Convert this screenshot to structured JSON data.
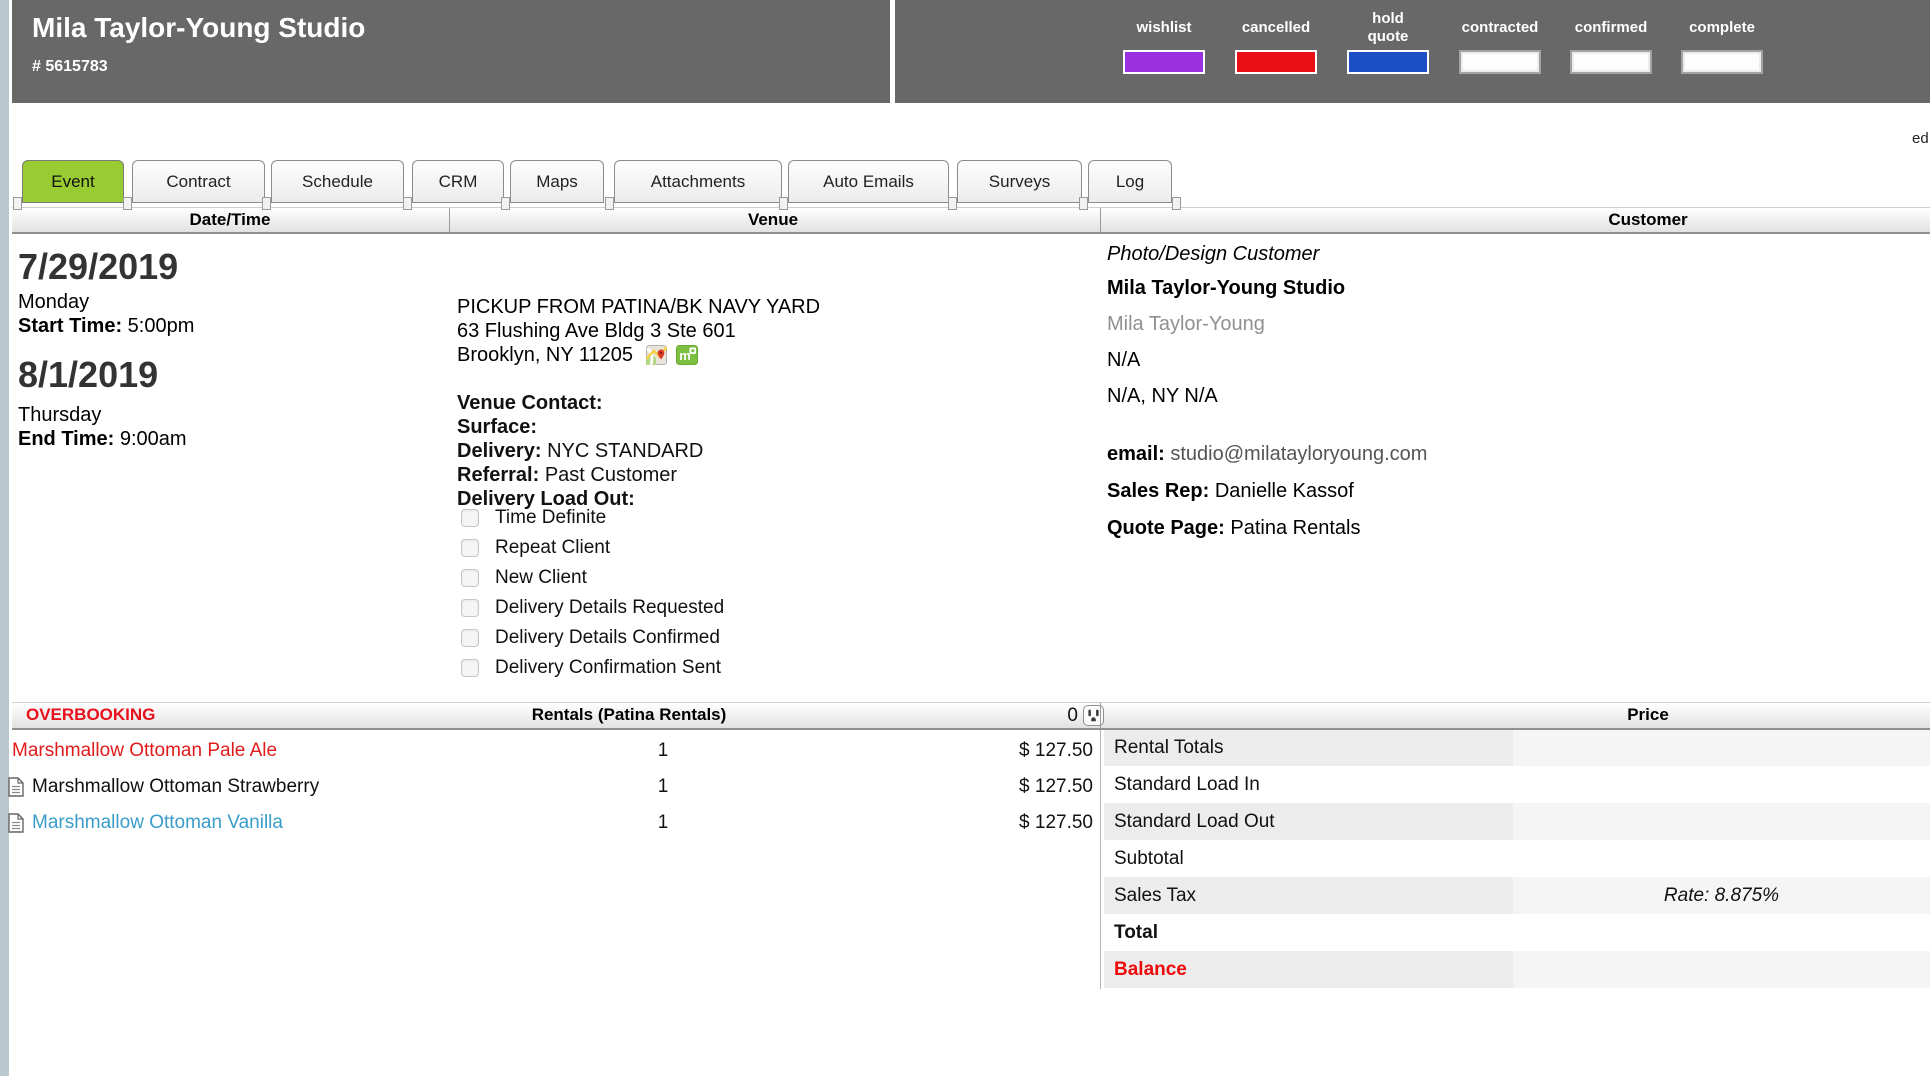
{
  "header": {
    "title": "Mila Taylor-Young Studio",
    "order_number": "# 5615783",
    "edit_label": "ed",
    "legend": [
      {
        "label": "wishlist",
        "color": "#9a30df",
        "filled": true
      },
      {
        "label": "cancelled",
        "color": "#ea0e17",
        "filled": true
      },
      {
        "label": "hold\nquote",
        "color": "#1c4fc5",
        "filled": true
      },
      {
        "label": "contracted",
        "color": "#ffffff",
        "filled": false
      },
      {
        "label": "confirmed",
        "color": "#ffffff",
        "filled": false
      },
      {
        "label": "complete",
        "color": "#ffffff",
        "filled": false
      }
    ]
  },
  "tabs": [
    {
      "label": "Event",
      "active": true
    },
    {
      "label": "Contract",
      "active": false
    },
    {
      "label": "Schedule",
      "active": false
    },
    {
      "label": "CRM",
      "active": false
    },
    {
      "label": "Maps",
      "active": false
    },
    {
      "label": "Attachments",
      "active": false
    },
    {
      "label": "Auto Emails",
      "active": false
    },
    {
      "label": "Surveys",
      "active": false
    },
    {
      "label": "Log",
      "active": false
    }
  ],
  "sections": {
    "datetime": "Date/Time",
    "venue": "Venue",
    "customer": "Customer"
  },
  "datetime": {
    "start_date": "7/29/2019",
    "start_day": "Monday",
    "start_time_label": "Start Time:",
    "start_time": "5:00pm",
    "end_date": "8/1/2019",
    "end_day": "Thursday",
    "end_time_label": "End Time:",
    "end_time": "9:00am"
  },
  "venue": {
    "name": "PICKUP FROM PATINA/BK NAVY YARD",
    "address1": "63 Flushing Ave Bldg 3 Ste 601",
    "address2": "Brooklyn, NY 11205",
    "map_icons": [
      "google-maps-icon",
      "mapquest-icon"
    ],
    "fields": [
      {
        "label": "Venue Contact:",
        "value": ""
      },
      {
        "label": "Surface:",
        "value": ""
      },
      {
        "label": "Delivery:",
        "value": "NYC STANDARD"
      },
      {
        "label": "Referral:",
        "value": "Past Customer"
      },
      {
        "label": "Delivery Load Out:",
        "value": ""
      }
    ],
    "checkboxes": [
      {
        "label": "Time Definite",
        "checked": false
      },
      {
        "label": "Repeat Client",
        "checked": false
      },
      {
        "label": "New Client",
        "checked": false
      },
      {
        "label": "Delivery Details Requested",
        "checked": false
      },
      {
        "label": "Delivery Details Confirmed",
        "checked": false
      },
      {
        "label": "Delivery Confirmation Sent",
        "checked": false
      }
    ]
  },
  "customer": {
    "type": "Photo/Design Customer",
    "company": "Mila Taylor-Young Studio",
    "contact": "Mila Taylor-Young",
    "address1": "N/A",
    "address2": "N/A, NY N/A",
    "email_label": "email:",
    "email": "studio@milatayloryoung.com",
    "sales_rep_label": "Sales Rep:",
    "sales_rep": "Danielle Kassof",
    "quote_page_label": "Quote Page:",
    "quote_page": "Patina Rentals"
  },
  "rentals": {
    "overbooking_label": "OVERBOOKING",
    "title": "Rentals (Patina Rentals)",
    "outlet_count": "0",
    "items": [
      {
        "name": "Marshmallow Ottoman Pale Ale",
        "qty": "1",
        "price": "$ 127.50",
        "style": "overbooked",
        "has_doc": false
      },
      {
        "name": "Marshmallow Ottoman Strawberry",
        "qty": "1",
        "price": "$ 127.50",
        "style": "normal",
        "has_doc": true
      },
      {
        "name": "Marshmallow Ottoman Vanilla",
        "qty": "1",
        "price": "$ 127.50",
        "style": "link",
        "has_doc": true
      }
    ]
  },
  "price_panel": {
    "title": "Price",
    "rows": [
      {
        "label": "Rental Totals",
        "value": "",
        "shaded": true,
        "bold": false,
        "red": false,
        "value_italic": false
      },
      {
        "label": "Standard Load In",
        "value": "",
        "shaded": false,
        "bold": false,
        "red": false,
        "value_italic": false
      },
      {
        "label": "Standard Load Out",
        "value": "",
        "shaded": true,
        "bold": false,
        "red": false,
        "value_italic": false
      },
      {
        "label": "Subtotal",
        "value": "",
        "shaded": false,
        "bold": false,
        "red": false,
        "value_italic": false
      },
      {
        "label": "Sales Tax",
        "value": "Rate: 8.875%",
        "shaded": true,
        "bold": false,
        "red": false,
        "value_italic": true
      },
      {
        "label": "Total",
        "value": "",
        "shaded": false,
        "bold": true,
        "red": false,
        "value_italic": false
      },
      {
        "label": "Balance",
        "value": "",
        "shaded": true,
        "bold": false,
        "red": true,
        "value_italic": false
      }
    ]
  }
}
